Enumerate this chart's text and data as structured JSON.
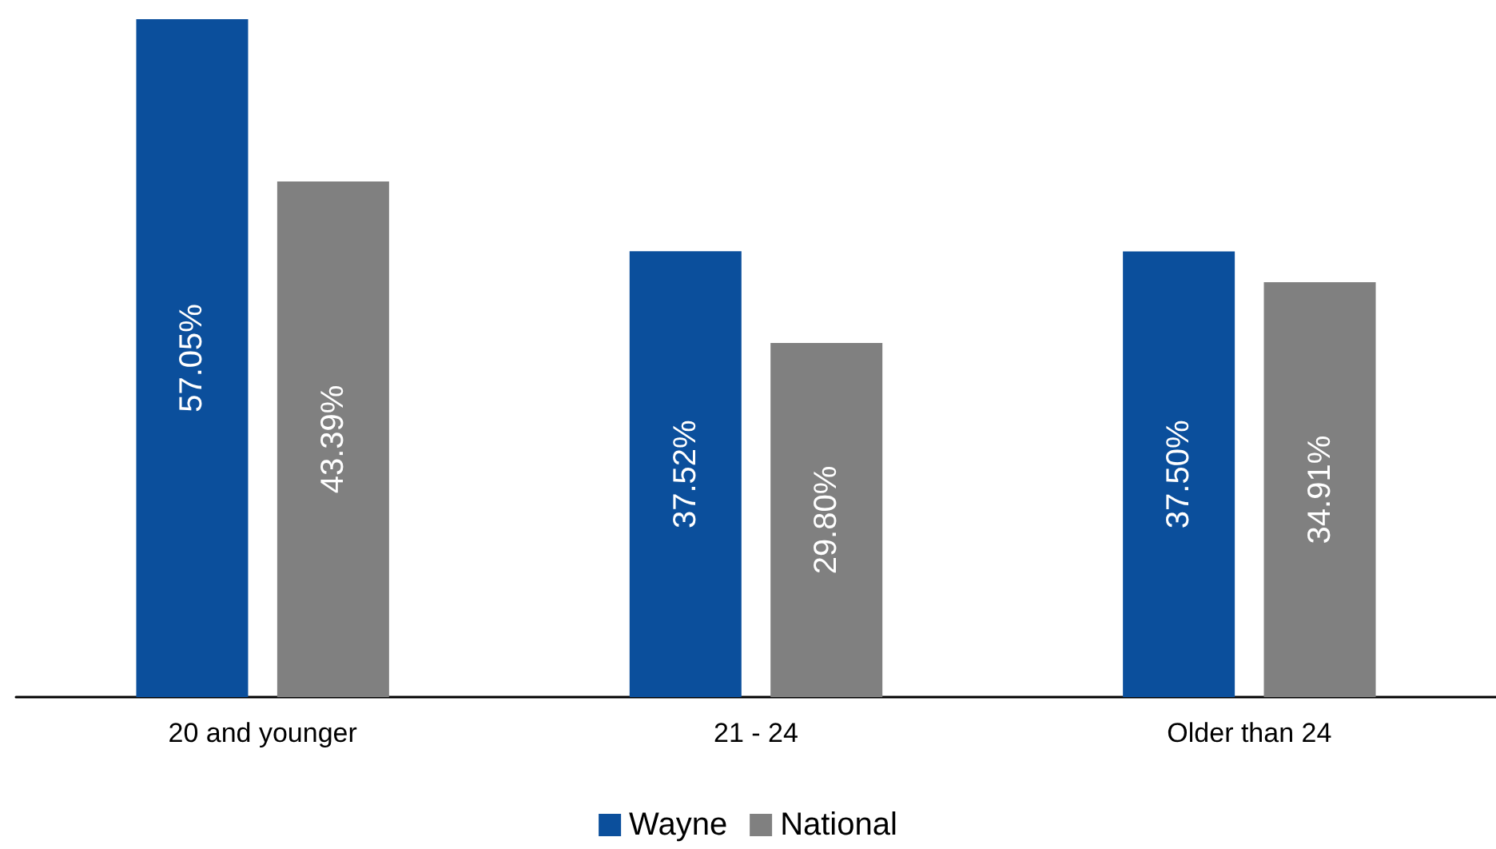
{
  "chart_data": {
    "type": "bar",
    "categories": [
      "20 and younger",
      "21 - 24",
      "Older than 24"
    ],
    "series": [
      {
        "name": "Wayne",
        "color": "#0b4f9c",
        "values": [
          57.05,
          37.52,
          37.5
        ],
        "value_labels": [
          "57.05%",
          "37.52%",
          "37.50%"
        ]
      },
      {
        "name": "National",
        "color": "#808080",
        "values": [
          43.39,
          29.8,
          34.91
        ],
        "value_labels": [
          "43.39%",
          "29.80%",
          "34.91%"
        ]
      }
    ],
    "legend": "bottom"
  }
}
